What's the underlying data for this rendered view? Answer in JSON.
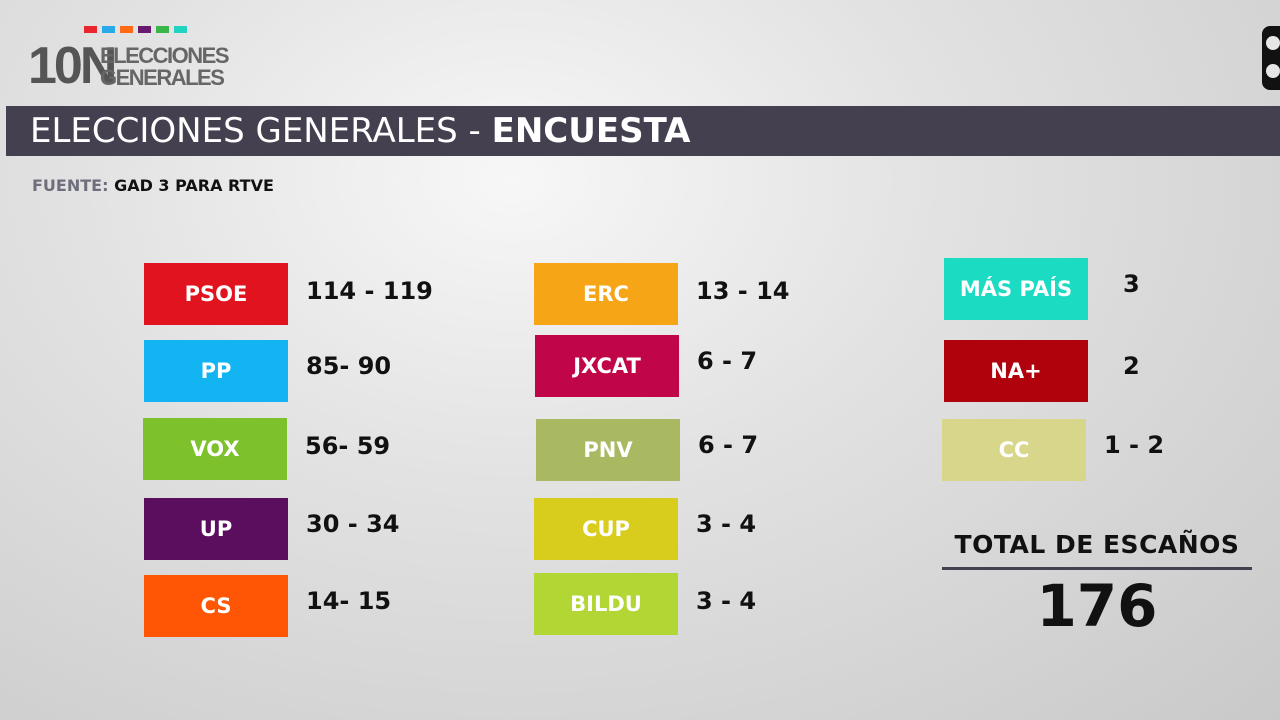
{
  "logo": {
    "number": "10N",
    "line1": "ELECCIONES",
    "line2": "GENERALES",
    "bar_colors": [
      "#e8262b",
      "#2aa9e8",
      "#ff6a13",
      "#6a1a6e",
      "#39b54a",
      "#22d3c1"
    ]
  },
  "corner_icon": "broadcaster-logo-icon",
  "title": {
    "regular": "ELECCIONES GENERALES - ",
    "bold": "ENCUESTA"
  },
  "source": {
    "label": "FUENTE: ",
    "value": "GAD 3 PARA RTVE"
  },
  "parties": [
    {
      "name": "PSOE",
      "seats": "114 - 119",
      "color": "#e1131e"
    },
    {
      "name": "PP",
      "seats": "85- 90",
      "color": "#12b5f2"
    },
    {
      "name": "VOX",
      "seats": "56- 59",
      "color": "#7dc12d"
    },
    {
      "name": "UP",
      "seats": "30 - 34",
      "color": "#5b0d5e"
    },
    {
      "name": "CS",
      "seats": "14- 15",
      "color": "#ff5606"
    },
    {
      "name": "ERC",
      "seats": "13 - 14",
      "color": "#f6a516"
    },
    {
      "name": "JXCAT",
      "seats": "6 - 7",
      "color": "#c10549"
    },
    {
      "name": "PNV",
      "seats": "6 - 7",
      "color": "#a8b962"
    },
    {
      "name": "CUP",
      "seats": "3 - 4",
      "color": "#d8cc1d"
    },
    {
      "name": "BILDU",
      "seats": "3 - 4",
      "color": "#b2d634"
    },
    {
      "name": "MÁS PAÍS",
      "seats": "3",
      "color": "#1bdbc3"
    },
    {
      "name": "NA+",
      "seats": "2",
      "color": "#b0020d"
    },
    {
      "name": "CC",
      "seats": "1 - 2",
      "color": "#d8d68b"
    }
  ],
  "total": {
    "label": "TOTAL DE ESCAÑOS",
    "value": "176"
  }
}
